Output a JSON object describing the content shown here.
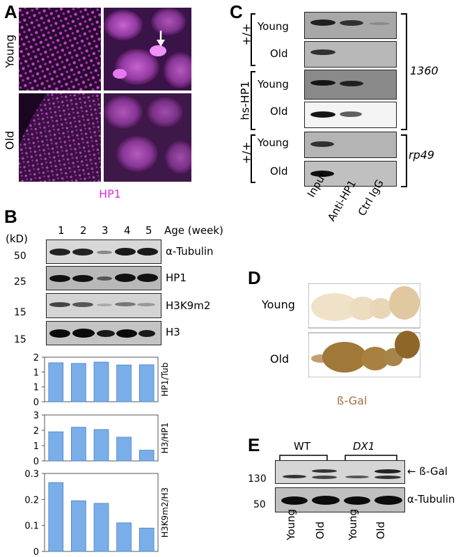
{
  "panels": {
    "A": {
      "label": "A",
      "rows": [
        "Young",
        "Old"
      ],
      "stain": "HP1",
      "colors": {
        "stain": "#e030e0"
      }
    },
    "B": {
      "label": "B",
      "unit": "(kD)",
      "lanes": [
        "1",
        "2",
        "3",
        "4",
        "5"
      ],
      "lane_header": "Age (week)",
      "blots": [
        {
          "name": "α-Tubulin",
          "marker": "50"
        },
        {
          "name": "HP1",
          "marker": "25"
        },
        {
          "name": "H3K9m2",
          "marker": "15"
        },
        {
          "name": "H3",
          "marker": "15"
        }
      ]
    },
    "C": {
      "label": "C",
      "groups": [
        "+/+",
        "hs-HP1",
        "+/+"
      ],
      "rows": [
        "Young",
        "Old",
        "Young",
        "Old",
        "Young",
        "Old"
      ],
      "targets": [
        "1360",
        "rp49"
      ],
      "columns": [
        "Input",
        "Anti-HP1",
        "Ctrl IgG"
      ]
    },
    "D": {
      "label": "D",
      "rows": [
        "Young",
        "Old"
      ],
      "stain": "ß-Gal",
      "colors": {
        "stain": "#a07040"
      }
    },
    "E": {
      "label": "E",
      "groups": [
        "WT",
        "DX1"
      ],
      "markers": [
        "130",
        "50"
      ],
      "blots": [
        "ß-Gal",
        "α-Tubulin"
      ],
      "columns": [
        "Young",
        "Old",
        "Young",
        "Old"
      ]
    }
  },
  "chart_data": [
    {
      "type": "bar",
      "categories": [
        "1",
        "2",
        "3",
        "4",
        "5"
      ],
      "values": [
        1.75,
        1.72,
        1.78,
        1.65,
        1.66
      ],
      "title": "",
      "xlabel": "",
      "ylabel": "HP1/Tub",
      "ylim": [
        0,
        2
      ],
      "yticks": [
        "0",
        "1",
        "1",
        "2"
      ],
      "color": "#7aaee8"
    },
    {
      "type": "bar",
      "categories": [
        "1",
        "2",
        "3",
        "4",
        "5"
      ],
      "values": [
        1.9,
        2.2,
        2.05,
        1.55,
        0.7
      ],
      "title": "",
      "xlabel": "",
      "ylabel": "H3/HP1",
      "ylim": [
        0,
        3
      ],
      "yticks": [
        "0",
        "1",
        "2",
        "3"
      ],
      "color": "#7aaee8"
    },
    {
      "type": "bar",
      "categories": [
        "1",
        "2",
        "3",
        "4",
        "5"
      ],
      "values": [
        0.265,
        0.195,
        0.185,
        0.11,
        0.09
      ],
      "title": "",
      "xlabel": "",
      "ylabel": "H3K9m2/H3",
      "ylim": [
        0,
        0.3
      ],
      "yticks": [
        "0",
        "0.1",
        "0.2",
        "0.3"
      ],
      "color": "#7aaee8"
    }
  ]
}
